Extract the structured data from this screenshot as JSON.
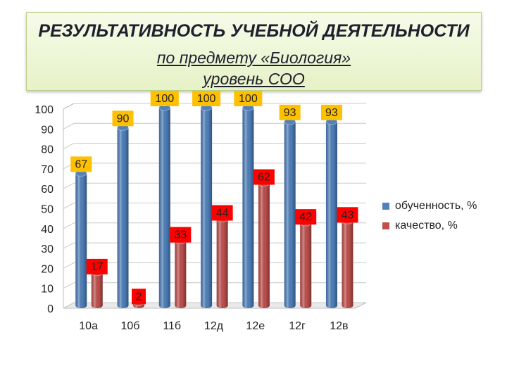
{
  "title": {
    "line1": "РЕЗУЛЬТАТИВНОСТЬ УЧЕБНОЙ ДЕЯТЕЛЬНОСТИ",
    "line2": "по предмету «Биология»",
    "line3": "уровень СОО"
  },
  "chart_data": {
    "type": "bar",
    "categories": [
      "10а",
      "10б",
      "11б",
      "12д",
      "12е",
      "12г",
      "12в"
    ],
    "series": [
      {
        "name": "обученность, %",
        "color": "#4f81bd",
        "label_bg": "#ffc000",
        "values": [
          67,
          90,
          100,
          100,
          100,
          93,
          93
        ]
      },
      {
        "name": "качество, %",
        "color": "#c0504d",
        "label_bg": "#ff0000",
        "values": [
          17,
          2,
          33,
          44,
          62,
          42,
          43
        ]
      }
    ],
    "y_ticks": [
      "0",
      "10",
      "20",
      "30",
      "40",
      "50",
      "60",
      "70",
      "80",
      "90",
      "100"
    ],
    "ylim": [
      0,
      100
    ],
    "grid": true,
    "legend": "right",
    "style": "3d-cylinder"
  }
}
